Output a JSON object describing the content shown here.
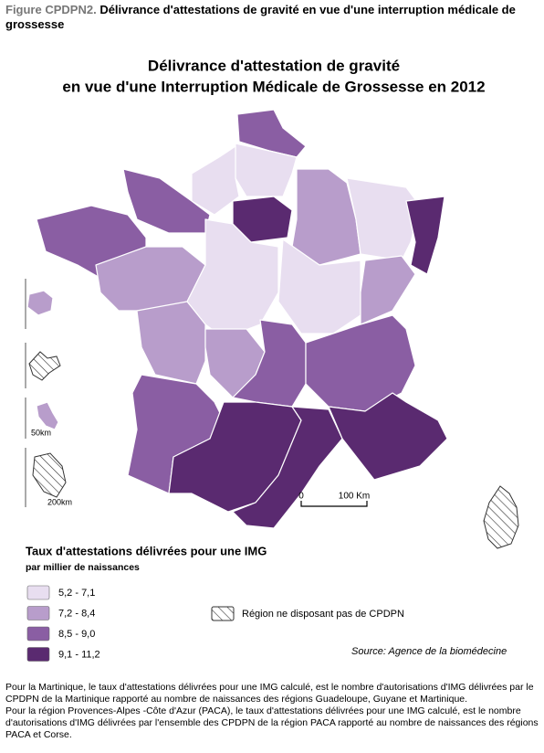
{
  "figure": {
    "label": "Figure CPDPN2.",
    "title": "Délivrance d'attestations de gravité en vue d'une interruption médicale de grossesse"
  },
  "map": {
    "title": [
      "Délivrance d'attestation de gravité",
      "en vue d'une Interruption Médicale de Grossesse en 2012"
    ],
    "scale": [
      "0",
      "100 Km"
    ],
    "inset_scales": [
      "50km",
      "200km"
    ]
  },
  "legend": {
    "title": "Taux d'attestations délivrées pour une IMG",
    "subtitle": "par millier de naissances",
    "classes": [
      {
        "label": "5,2 - 7,1",
        "color": "#e8def0"
      },
      {
        "label": "7,2 - 8,4",
        "color": "#b89dcb"
      },
      {
        "label": "8,5 - 9,0",
        "color": "#8a5ea3"
      },
      {
        "label": "9,1 - 11,2",
        "color": "#5a2a70"
      }
    ],
    "hatched": "Région ne disposant pas de CPDPN"
  },
  "source": "Source: Agence de la biomédecine",
  "notes": [
    "Pour la Martinique, le taux d'attestations délivrées pour une IMG calculé, est le nombre d'autorisations d'IMG délivrées par le CPDPN de la Martinique rapporté au nombre de naissances des régions Guadeloupe, Guyane et Martinique.",
    "Pour la région Provences-Alpes -Côte d'Azur (PACA), le taux d'attestations délivrées pour une IMG calculé, est le nombre d'autorisations d'IMG délivrées par l'ensemble des CPDPN de la région PACA rapporté au nombre de naissances des régions PACA et Corse."
  ]
}
